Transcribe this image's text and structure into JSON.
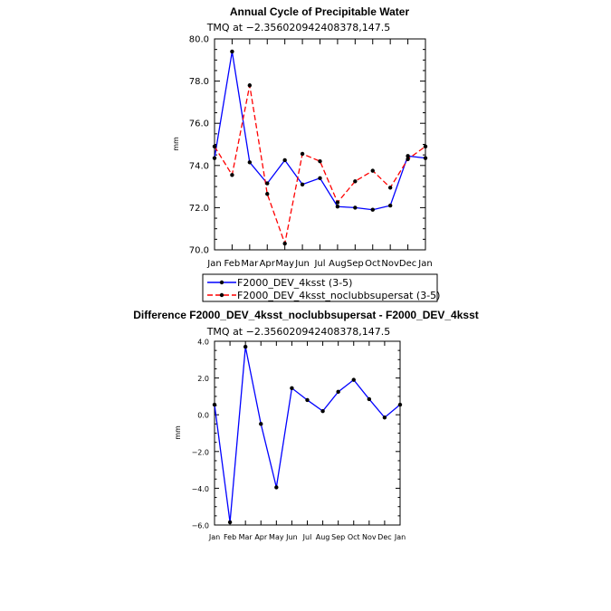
{
  "chart_data": [
    {
      "type": "line",
      "title": "Annual Cycle of Precipitable Water",
      "subtitle": "TMQ at −2.356020942408378,147.5",
      "ylabel": "mm",
      "xlabel": "",
      "categories": [
        "Jan",
        "Feb",
        "Mar",
        "Apr",
        "May",
        "Jun",
        "Jul",
        "Aug",
        "Sep",
        "Oct",
        "Nov",
        "Dec",
        "Jan"
      ],
      "ylim": [
        70.0,
        80.0
      ],
      "yticks": [
        "70.0",
        "72.0",
        "74.0",
        "76.0",
        "78.0",
        "80.0"
      ],
      "ytick_values": [
        70,
        72,
        74,
        76,
        78,
        80
      ],
      "grid": false,
      "legend_position": "bottom",
      "series": [
        {
          "name": "F2000_DEV_4ksst (3-5)",
          "color": "#0000ff",
          "dash": "solid",
          "values": [
            74.35,
            79.4,
            74.15,
            73.15,
            74.25,
            73.1,
            73.4,
            72.05,
            72.0,
            71.9,
            72.1,
            74.45,
            74.35
          ]
        },
        {
          "name": "F2000_DEV_4ksst_noclubbsupersat (3-5)",
          "color": "#ff0000",
          "dash": "dashed",
          "values": [
            74.9,
            73.55,
            77.8,
            72.65,
            70.3,
            74.55,
            74.2,
            72.25,
            73.25,
            73.75,
            72.95,
            74.3,
            74.9
          ]
        }
      ]
    },
    {
      "type": "line",
      "title": "Difference F2000_DEV_4ksst_noclubbsupersat - F2000_DEV_4ksst",
      "subtitle": "TMQ at −2.356020942408378,147.5",
      "ylabel": "mm",
      "xlabel": "",
      "categories": [
        "Jan",
        "Feb",
        "Mar",
        "Apr",
        "May",
        "Jun",
        "Jul",
        "Aug",
        "Sep",
        "Oct",
        "Nov",
        "Dec",
        "Jan"
      ],
      "ylim": [
        -6.0,
        4.0
      ],
      "yticks": [
        "−6.0",
        "−4.0",
        "−2.0",
        "0.0",
        "2.0",
        "4.0"
      ],
      "ytick_values": [
        -6,
        -4,
        -2,
        0,
        2,
        4
      ],
      "grid": false,
      "series": [
        {
          "color": "#0000ff",
          "dash": "solid",
          "values": [
            0.55,
            -5.85,
            3.7,
            -0.5,
            -3.95,
            1.45,
            0.8,
            0.2,
            1.25,
            1.9,
            0.85,
            -0.15,
            0.55
          ]
        }
      ]
    }
  ]
}
